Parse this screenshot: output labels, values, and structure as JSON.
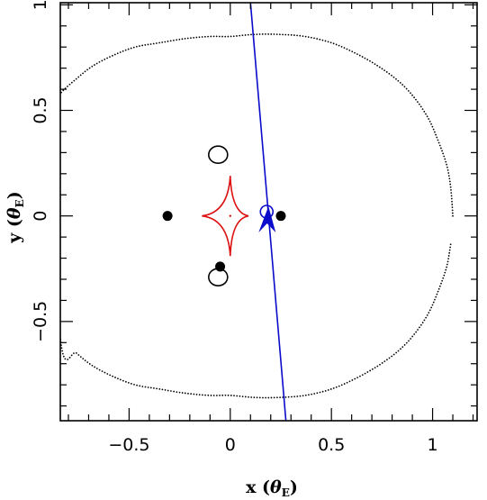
{
  "chart_data": {
    "type": "scatter",
    "xlabel": "x",
    "ylabel": "y",
    "axis_unit_symbol": "θ",
    "axis_unit_subscript": "E",
    "xlim": [
      -0.84,
      1.22
    ],
    "ylim": [
      -0.97,
      1.01
    ],
    "x_ticks": [
      -0.5,
      0,
      0.5,
      1
    ],
    "x_tick_labels": [
      "−0.5",
      "0",
      "0.5",
      "1"
    ],
    "y_ticks": [
      -0.5,
      0,
      0.5,
      1
    ],
    "y_tick_labels": [
      "−0.5",
      "0",
      "0.5",
      "1"
    ],
    "x_minor_step": 0.1,
    "y_minor_step": 0.1,
    "grid": false,
    "legend": "none",
    "colors": {
      "caustic": "#dd1111",
      "trajectory": "#0b0bcc",
      "source": "#0b0bcc",
      "critical_curve": "#000000",
      "images": "#000000"
    },
    "critical_curve": {
      "style": "dotted",
      "points": [
        [
          1.1,
          0.0
        ],
        [
          1.09,
          0.13
        ],
        [
          1.07,
          0.24
        ],
        [
          1.03,
          0.35
        ],
        [
          0.98,
          0.46
        ],
        [
          0.91,
          0.56
        ],
        [
          0.83,
          0.64
        ],
        [
          0.73,
          0.71
        ],
        [
          0.62,
          0.77
        ],
        [
          0.5,
          0.82
        ],
        [
          0.37,
          0.85
        ],
        [
          0.24,
          0.86
        ],
        [
          0.12,
          0.86
        ],
        [
          0.0,
          0.85
        ],
        [
          -0.1,
          0.85
        ],
        [
          -0.22,
          0.84
        ],
        [
          -0.35,
          0.82
        ],
        [
          -0.47,
          0.8
        ],
        [
          -0.58,
          0.76
        ],
        [
          -0.68,
          0.71
        ],
        [
          -0.76,
          0.65
        ],
        [
          -0.84,
          0.58
        ],
        [
          -0.9,
          0.5
        ]
      ]
    },
    "caustic": {
      "cusps": [
        [
          -0.14,
          0.0
        ],
        [
          0.0,
          0.19
        ],
        [
          0.09,
          0.0
        ],
        [
          0.0,
          -0.19
        ]
      ],
      "center_dot": [
        0.0,
        0.0
      ]
    },
    "trajectory": {
      "start": [
        0.1,
        1.01
      ],
      "end": [
        0.275,
        -0.97
      ]
    },
    "source_position": [
      0.18,
      0.02
    ],
    "source_direction_arrow": [
      0.18,
      -0.01
    ],
    "images_filled": [
      [
        -0.31,
        0.0
      ],
      [
        0.25,
        0.0
      ],
      [
        -0.05,
        -0.24
      ]
    ],
    "images_open": [
      [
        -0.06,
        0.29
      ],
      [
        -0.06,
        -0.29
      ]
    ]
  }
}
